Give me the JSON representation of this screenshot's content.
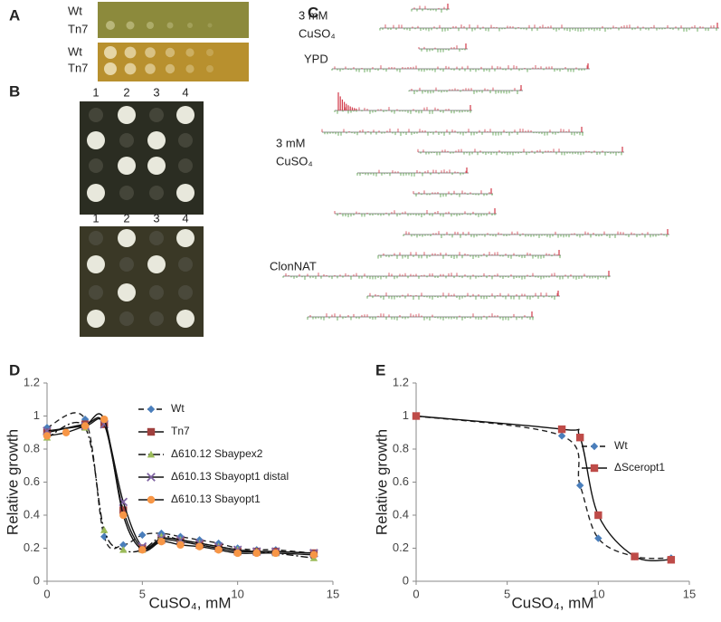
{
  "panel_a": {
    "label": "A",
    "rows": [
      "Wt",
      "Tn7",
      "Wt",
      "Tn7"
    ],
    "conditions": [
      [
        "3 mM",
        "CuSO₄"
      ],
      [
        "YPD"
      ]
    ]
  },
  "panel_b": {
    "label": "B",
    "plates": [
      {
        "columns": [
          "1",
          "2",
          "3",
          "4"
        ],
        "condition": [
          "3 mM",
          "CuSO₄"
        ]
      },
      {
        "columns": [
          "1",
          "2",
          "3",
          "4"
        ],
        "condition": [
          "ClonNAT"
        ]
      }
    ]
  },
  "panel_c": {
    "label": "C"
  },
  "chart_data": [
    {
      "type": "line",
      "panel_label": "D",
      "xlabel": "CuSO₄, mM",
      "ylabel": "Relative growth",
      "xlim": [
        0,
        15
      ],
      "xticks": [
        0,
        5,
        10,
        15
      ],
      "ylim": [
        0,
        1.2
      ],
      "yticks": [
        0,
        0.2,
        0.4,
        0.6,
        0.8,
        1,
        1.2
      ],
      "grid": false,
      "series": [
        {
          "name": "Wt",
          "color": "#4a7ebb",
          "marker": "diamond",
          "dash": "6 4",
          "x": [
            0,
            2,
            3,
            4,
            5,
            6,
            7,
            8,
            9,
            10,
            11,
            12,
            14
          ],
          "values": [
            0.93,
            0.98,
            0.27,
            0.22,
            0.28,
            0.29,
            0.27,
            0.25,
            0.23,
            0.2,
            0.19,
            0.19,
            0.17
          ]
        },
        {
          "name": "Tn7",
          "color": "#a0403e",
          "marker": "square",
          "dash": "none",
          "x": [
            0,
            2,
            3,
            4,
            5,
            6,
            7,
            8,
            9,
            10,
            11,
            12,
            14
          ],
          "values": [
            0.9,
            0.95,
            0.95,
            0.43,
            0.2,
            0.25,
            0.24,
            0.22,
            0.2,
            0.18,
            0.18,
            0.18,
            0.17
          ]
        },
        {
          "name": "Δ610.12 Sbaypex2",
          "color": "#9bbb59",
          "marker": "triangle",
          "dash": "8 3 2 3",
          "x": [
            0,
            2,
            3,
            4,
            5,
            6,
            7,
            8,
            9,
            10,
            11,
            12,
            14
          ],
          "values": [
            0.87,
            0.93,
            0.31,
            0.19,
            0.19,
            0.27,
            0.25,
            0.23,
            0.21,
            0.19,
            0.18,
            0.17,
            0.14
          ]
        },
        {
          "name": "Δ610.13 Sbayopt1 distal",
          "color": "#7f63a2",
          "marker": "x",
          "dash": "none",
          "x": [
            0,
            2,
            3,
            4,
            5,
            6,
            7,
            8,
            9,
            10,
            11,
            12,
            14
          ],
          "values": [
            0.91,
            0.94,
            0.95,
            0.48,
            0.21,
            0.26,
            0.25,
            0.23,
            0.21,
            0.19,
            0.18,
            0.18,
            0.17
          ]
        },
        {
          "name": "Δ610.13 Sbayopt1",
          "color": "#f79646",
          "marker": "circle",
          "dash": "none",
          "x": [
            0,
            1,
            2,
            3,
            4,
            5,
            6,
            7,
            8,
            9,
            10,
            11,
            12,
            14
          ],
          "values": [
            0.88,
            0.9,
            0.94,
            0.98,
            0.4,
            0.19,
            0.24,
            0.22,
            0.21,
            0.19,
            0.17,
            0.17,
            0.17,
            0.16
          ]
        }
      ]
    },
    {
      "type": "line",
      "panel_label": "E",
      "xlabel": "CuSO₄, mM",
      "ylabel": "Relative growth",
      "xlim": [
        0,
        15
      ],
      "xticks": [
        0,
        5,
        10,
        15
      ],
      "ylim": [
        0,
        1.2
      ],
      "yticks": [
        0,
        0.2,
        0.4,
        0.6,
        0.8,
        1,
        1.2
      ],
      "grid": false,
      "series": [
        {
          "name": "Wt",
          "color": "#4a7ebb",
          "marker": "diamond",
          "dash": "6 4",
          "x": [
            0,
            8,
            9,
            10,
            12,
            14
          ],
          "values": [
            1,
            0.88,
            0.58,
            0.26,
            0.15,
            0.14
          ]
        },
        {
          "name": "ΔSceropt1",
          "color": "#be4b48",
          "marker": "square",
          "dash": "none",
          "x": [
            0,
            8,
            9,
            10,
            12,
            14
          ],
          "values": [
            1,
            0.92,
            0.87,
            0.4,
            0.15,
            0.13
          ]
        }
      ]
    }
  ]
}
